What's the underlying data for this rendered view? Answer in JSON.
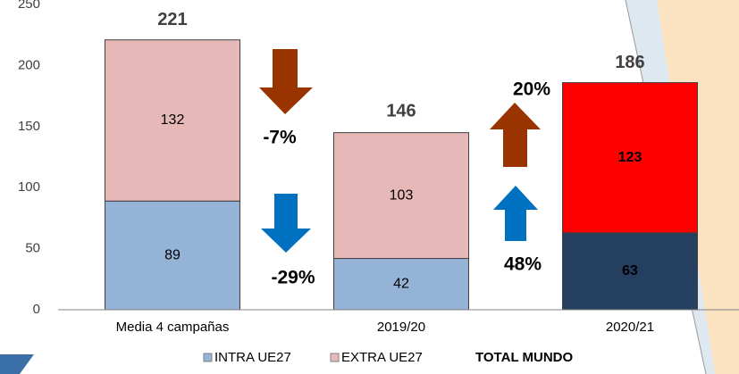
{
  "chart_data": {
    "type": "stacked-bar",
    "categories": [
      "Media 4 campañas",
      "2019/20",
      "2020/21"
    ],
    "series": [
      {
        "name": "INTRA UE27",
        "color": "#95b3d7",
        "colors": [
          "#95b3d7",
          "#95b3d7",
          "#243f60"
        ],
        "values": [
          89,
          42,
          63
        ]
      },
      {
        "name": "EXTRA UE27",
        "color": "#e6b9b8",
        "colors": [
          "#e6b9b8",
          "#e6b9b8",
          "#ff0000"
        ],
        "values": [
          132,
          103,
          123
        ]
      }
    ],
    "totals_label": "TOTAL MUNDO",
    "totals": [
      221,
      146,
      186
    ],
    "annotations": [
      "-7%",
      "-29%",
      "20%",
      "48%"
    ],
    "ylim": [
      0,
      250
    ],
    "yticks": [
      0,
      50,
      100,
      150,
      200,
      250
    ],
    "grid": false
  }
}
